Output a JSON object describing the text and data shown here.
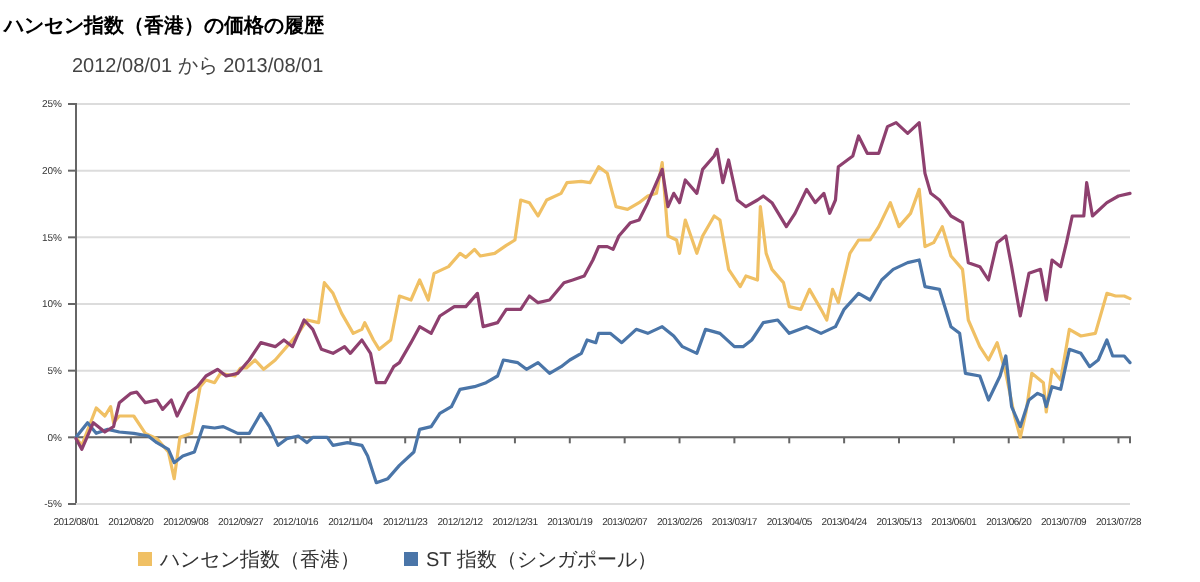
{
  "chart_data": {
    "type": "line",
    "title": "ハンセン指数（香港）の価格の履歴",
    "subtitle": "2012/08/01 から 2013/08/01",
    "xlim": [
      "2012-08-01",
      "2013-08-01"
    ],
    "xticks": [
      {
        "value": "2012-08-01",
        "label": "2012/08/01"
      },
      {
        "value": "2012-08-20",
        "label": "2012/08/20"
      },
      {
        "value": "2012-09-08",
        "label": "2012/09/08"
      },
      {
        "value": "2012-09-27",
        "label": "2012/09/27"
      },
      {
        "value": "2012-10-16",
        "label": "2012/10/16"
      },
      {
        "value": "2012-11-04",
        "label": "2012/11/04"
      },
      {
        "value": "2012-11-23",
        "label": "2012/11/23"
      },
      {
        "value": "2012-12-12",
        "label": "2012/12/12"
      },
      {
        "value": "2012-12-31",
        "label": "2012/12/31"
      },
      {
        "value": "2013-01-19",
        "label": "2013/01/19"
      },
      {
        "value": "2013-02-07",
        "label": "2013/02/07"
      },
      {
        "value": "2013-02-26",
        "label": "2013/02/26"
      },
      {
        "value": "2013-03-17",
        "label": "2013/03/17"
      },
      {
        "value": "2013-04-05",
        "label": "2013/04/05"
      },
      {
        "value": "2013-04-24",
        "label": "2013/04/24"
      },
      {
        "value": "2013-05-13",
        "label": "2013/05/13"
      },
      {
        "value": "2013-06-01",
        "label": "2013/06/01"
      },
      {
        "value": "2013-06-20",
        "label": "2013/06/20"
      },
      {
        "value": "2013-07-09",
        "label": "2013/07/09"
      },
      {
        "value": "2013-07-28",
        "label": "2013/07/28"
      }
    ],
    "ylim": [
      -5,
      25
    ],
    "yticks": [
      {
        "value": -5,
        "label": "-5%"
      },
      {
        "value": 0,
        "label": "0%"
      },
      {
        "value": 5,
        "label": "5%"
      },
      {
        "value": 10,
        "label": "10%"
      },
      {
        "value": 15,
        "label": "15%"
      },
      {
        "value": 20,
        "label": "20%"
      },
      {
        "value": 25,
        "label": "25%"
      }
    ],
    "grid": "y",
    "legend": "bottom",
    "marker": "none",
    "line_style": "solid",
    "series": [
      {
        "name": "ハンセン指数（香港）",
        "color": "#f0c064",
        "x": [
          "2012-08-01",
          "2012-08-03",
          "2012-08-08",
          "2012-08-11",
          "2012-08-13",
          "2012-08-14",
          "2012-08-16",
          "2012-08-21",
          "2012-08-25",
          "2012-08-29",
          "2012-09-02",
          "2012-09-04",
          "2012-09-06",
          "2012-09-10",
          "2012-09-13",
          "2012-09-15",
          "2012-09-18",
          "2012-09-20",
          "2012-09-25",
          "2012-09-27",
          "2012-09-29",
          "2012-10-02",
          "2012-10-05",
          "2012-10-09",
          "2012-10-13",
          "2012-10-17",
          "2012-10-20",
          "2012-10-24",
          "2012-10-26",
          "2012-10-29",
          "2012-11-01",
          "2012-11-05",
          "2012-11-08",
          "2012-11-09",
          "2012-11-12",
          "2012-11-14",
          "2012-11-18",
          "2012-11-21",
          "2012-11-25",
          "2012-11-28",
          "2012-12-01",
          "2012-12-03",
          "2012-12-08",
          "2012-12-12",
          "2012-12-14",
          "2012-12-17",
          "2012-12-19",
          "2012-12-24",
          "2012-12-28",
          "2012-12-31",
          "2013-01-02",
          "2013-01-05",
          "2013-01-08",
          "2013-01-11",
          "2013-01-16",
          "2013-01-18",
          "2013-01-23",
          "2013-01-26",
          "2013-01-29",
          "2013-02-01",
          "2013-02-04",
          "2013-02-08",
          "2013-02-12",
          "2013-02-15",
          "2013-02-18",
          "2013-02-20",
          "2013-02-22",
          "2013-02-25",
          "2013-02-26",
          "2013-02-28",
          "2013-03-04",
          "2013-03-06",
          "2013-03-10",
          "2013-03-12",
          "2013-03-15",
          "2013-03-19",
          "2013-03-21",
          "2013-03-25",
          "2013-03-26",
          "2013-03-28",
          "2013-03-30",
          "2013-04-03",
          "2013-04-05",
          "2013-04-09",
          "2013-04-12",
          "2013-04-16",
          "2013-04-18",
          "2013-04-20",
          "2013-04-22",
          "2013-04-26",
          "2013-04-29",
          "2013-05-03",
          "2013-05-06",
          "2013-05-10",
          "2013-05-13",
          "2013-05-17",
          "2013-05-20",
          "2013-05-22",
          "2013-05-25",
          "2013-05-28",
          "2013-05-31",
          "2013-06-04",
          "2013-06-06",
          "2013-06-10",
          "2013-06-13",
          "2013-06-16",
          "2013-06-19",
          "2013-06-22",
          "2013-06-24",
          "2013-06-26",
          "2013-06-28",
          "2013-07-02",
          "2013-07-03",
          "2013-07-05",
          "2013-07-08",
          "2013-07-11",
          "2013-07-15",
          "2013-07-20",
          "2013-07-24",
          "2013-07-27",
          "2013-07-30",
          "2013-08-01"
        ],
        "values": [
          0,
          -0.6,
          2.2,
          1.6,
          2.3,
          1.1,
          1.6,
          1.6,
          0.3,
          -0.1,
          -1.1,
          -3.1,
          0,
          0.3,
          3.8,
          4.3,
          4.1,
          4.8,
          4.6,
          5.2,
          5.2,
          5.8,
          5.1,
          5.8,
          6.8,
          7.8,
          8.8,
          8.6,
          11.6,
          10.8,
          9.3,
          7.8,
          8.1,
          8.6,
          7.3,
          6.6,
          7.3,
          10.6,
          10.3,
          11.8,
          10.3,
          12.3,
          12.8,
          13.8,
          13.5,
          14.1,
          13.6,
          13.8,
          14.4,
          14.8,
          17.8,
          17.6,
          16.6,
          17.8,
          18.3,
          19.1,
          19.2,
          19.1,
          20.3,
          19.8,
          17.3,
          17.1,
          17.6,
          18.1,
          18.3,
          20.6,
          15.1,
          14.8,
          13.8,
          16.3,
          13.8,
          15.1,
          16.6,
          16.3,
          12.6,
          11.3,
          12.1,
          11.8,
          17.3,
          13.8,
          12.6,
          11.6,
          9.8,
          9.6,
          11.1,
          9.6,
          8.8,
          11.1,
          10.1,
          13.8,
          14.8,
          14.8,
          15.8,
          17.6,
          15.8,
          16.8,
          18.6,
          14.3,
          14.6,
          15.8,
          13.6,
          12.6,
          8.8,
          6.8,
          5.8,
          7.1,
          4.8,
          1.6,
          0,
          1.9,
          4.8,
          4.1,
          1.9,
          5.1,
          4.3,
          8.1,
          7.6,
          7.8,
          10.8,
          10.6,
          10.6,
          10.4
        ]
      },
      {
        "name": "ST 指数（シンガポール）",
        "color": "#4a75a8",
        "x": [
          "2012-08-01",
          "2012-08-05",
          "2012-08-08",
          "2012-08-12",
          "2012-08-16",
          "2012-08-21",
          "2012-08-26",
          "2012-08-29",
          "2012-09-02",
          "2012-09-04",
          "2012-09-07",
          "2012-09-11",
          "2012-09-14",
          "2012-09-18",
          "2012-09-21",
          "2012-09-26",
          "2012-09-30",
          "2012-10-04",
          "2012-10-07",
          "2012-10-10",
          "2012-10-13",
          "2012-10-17",
          "2012-10-20",
          "2012-10-22",
          "2012-10-27",
          "2012-10-29",
          "2012-11-03",
          "2012-11-08",
          "2012-11-10",
          "2012-11-13",
          "2012-11-17",
          "2012-11-21",
          "2012-11-26",
          "2012-11-28",
          "2012-12-02",
          "2012-12-05",
          "2012-12-09",
          "2012-12-12",
          "2012-12-17",
          "2012-12-21",
          "2012-12-25",
          "2012-12-27",
          "2013-01-01",
          "2013-01-04",
          "2013-01-08",
          "2013-01-12",
          "2013-01-16",
          "2013-01-19",
          "2013-01-23",
          "2013-01-25",
          "2013-01-28",
          "2013-01-29",
          "2013-02-02",
          "2013-02-06",
          "2013-02-11",
          "2013-02-15",
          "2013-02-20",
          "2013-02-24",
          "2013-02-27",
          "2013-03-04",
          "2013-03-07",
          "2013-03-12",
          "2013-03-17",
          "2013-03-20",
          "2013-03-23",
          "2013-03-27",
          "2013-04-01",
          "2013-04-05",
          "2013-04-11",
          "2013-04-16",
          "2013-04-21",
          "2013-04-24",
          "2013-04-29",
          "2013-05-03",
          "2013-05-07",
          "2013-05-11",
          "2013-05-16",
          "2013-05-20",
          "2013-05-22",
          "2013-05-27",
          "2013-05-31",
          "2013-06-03",
          "2013-06-05",
          "2013-06-10",
          "2013-06-13",
          "2013-06-17",
          "2013-06-19",
          "2013-06-21",
          "2013-06-24",
          "2013-06-27",
          "2013-06-30",
          "2013-07-02",
          "2013-07-03",
          "2013-07-05",
          "2013-07-08",
          "2013-07-11",
          "2013-07-15",
          "2013-07-18",
          "2013-07-21",
          "2013-07-24",
          "2013-07-26",
          "2013-07-30",
          "2013-08-01"
        ],
        "values": [
          0,
          1.1,
          0.3,
          0.6,
          0.4,
          0.3,
          0.1,
          -0.4,
          -0.9,
          -1.9,
          -1.4,
          -1.1,
          0.8,
          0.7,
          0.8,
          0.3,
          0.3,
          1.8,
          0.8,
          -0.6,
          -0.1,
          0.1,
          -0.4,
          0,
          0,
          -0.6,
          -0.4,
          -0.6,
          -1.4,
          -3.4,
          -3.1,
          -2.1,
          -1.1,
          0.6,
          0.8,
          1.8,
          2.3,
          3.6,
          3.8,
          4.1,
          4.6,
          5.8,
          5.6,
          5.1,
          5.6,
          4.8,
          5.3,
          5.8,
          6.3,
          7.3,
          7.1,
          7.8,
          7.8,
          7.1,
          8.1,
          7.8,
          8.3,
          7.6,
          6.8,
          6.3,
          8.1,
          7.8,
          6.8,
          6.8,
          7.3,
          8.6,
          8.8,
          7.8,
          8.3,
          7.8,
          8.3,
          9.6,
          10.8,
          10.3,
          11.8,
          12.6,
          13.1,
          13.3,
          11.3,
          11.1,
          8.3,
          7.8,
          4.8,
          4.6,
          2.8,
          4.6,
          6.1,
          2.3,
          0.8,
          2.8,
          3.3,
          3.1,
          2.3,
          3.8,
          3.6,
          6.6,
          6.3,
          5.3,
          5.8,
          7.3,
          6.1,
          6.1,
          5.6
        ]
      },
      {
        "color": "#8e406f",
        "x": [
          "2012-08-01",
          "2012-08-03",
          "2012-08-07",
          "2012-08-11",
          "2012-08-14",
          "2012-08-16",
          "2012-08-20",
          "2012-08-22",
          "2012-08-25",
          "2012-08-29",
          "2012-08-31",
          "2012-09-03",
          "2012-09-05",
          "2012-09-09",
          "2012-09-12",
          "2012-09-15",
          "2012-09-19",
          "2012-09-22",
          "2012-09-26",
          "2012-09-30",
          "2012-10-04",
          "2012-10-09",
          "2012-10-12",
          "2012-10-15",
          "2012-10-19",
          "2012-10-22",
          "2012-10-25",
          "2012-10-29",
          "2012-11-02",
          "2012-11-04",
          "2012-11-08",
          "2012-11-11",
          "2012-11-13",
          "2012-11-16",
          "2012-11-19",
          "2012-11-21",
          "2012-11-25",
          "2012-11-28",
          "2012-12-02",
          "2012-12-05",
          "2012-12-10",
          "2012-12-14",
          "2012-12-18",
          "2012-12-20",
          "2012-12-25",
          "2012-12-28",
          "2013-01-02",
          "2013-01-05",
          "2013-01-08",
          "2013-01-12",
          "2013-01-17",
          "2013-01-20",
          "2013-01-24",
          "2013-01-27",
          "2013-01-29",
          "2013-02-01",
          "2013-02-03",
          "2013-02-05",
          "2013-02-09",
          "2013-02-12",
          "2013-02-15",
          "2013-02-18",
          "2013-02-20",
          "2013-02-22",
          "2013-02-24",
          "2013-02-26",
          "2013-02-28",
          "2013-03-04",
          "2013-03-06",
          "2013-03-10",
          "2013-03-11",
          "2013-03-13",
          "2013-03-15",
          "2013-03-18",
          "2013-03-21",
          "2013-03-25",
          "2013-03-27",
          "2013-03-30",
          "2013-04-04",
          "2013-04-07",
          "2013-04-11",
          "2013-04-14",
          "2013-04-17",
          "2013-04-19",
          "2013-04-21",
          "2013-04-22",
          "2013-04-27",
          "2013-04-29",
          "2013-05-02",
          "2013-05-06",
          "2013-05-09",
          "2013-05-12",
          "2013-05-16",
          "2013-05-20",
          "2013-05-22",
          "2013-05-24",
          "2013-05-27",
          "2013-05-31",
          "2013-06-04",
          "2013-06-06",
          "2013-06-10",
          "2013-06-13",
          "2013-06-16",
          "2013-06-19",
          "2013-06-21",
          "2013-06-24",
          "2013-06-27",
          "2013-07-01",
          "2013-07-03",
          "2013-07-05",
          "2013-07-08",
          "2013-07-10",
          "2013-07-12",
          "2013-07-16",
          "2013-07-17",
          "2013-07-19",
          "2013-07-24",
          "2013-07-28",
          "2013-08-01"
        ],
        "values": [
          -0.1,
          -0.9,
          1.1,
          0.4,
          0.8,
          2.6,
          3.3,
          3.4,
          2.6,
          2.8,
          2.1,
          2.8,
          1.6,
          3.3,
          3.8,
          4.6,
          5.1,
          4.6,
          4.8,
          5.8,
          7.1,
          6.8,
          7.3,
          6.8,
          8.8,
          8.1,
          6.6,
          6.3,
          6.8,
          6.3,
          7.3,
          6.3,
          4.1,
          4.1,
          5.3,
          5.6,
          7.1,
          8.3,
          7.8,
          9.1,
          9.8,
          9.8,
          10.8,
          8.3,
          8.6,
          9.6,
          9.6,
          10.6,
          10.1,
          10.3,
          11.6,
          11.8,
          12.1,
          13.3,
          14.3,
          14.3,
          14.1,
          15.1,
          16.1,
          16.3,
          17.6,
          19.1,
          20.1,
          17.3,
          18.3,
          17.6,
          19.3,
          18.3,
          20.1,
          21.1,
          21.6,
          19.1,
          20.8,
          17.8,
          17.3,
          17.8,
          18.1,
          17.6,
          15.8,
          16.8,
          18.6,
          17.6,
          18.3,
          16.8,
          17.8,
          20.3,
          21.1,
          22.6,
          21.3,
          21.3,
          23.3,
          23.6,
          22.8,
          23.6,
          19.8,
          18.3,
          17.8,
          16.6,
          16.1,
          13.1,
          12.8,
          11.8,
          14.6,
          15.1,
          12.8,
          9.1,
          12.3,
          12.6,
          10.3,
          13.3,
          12.8,
          14.6,
          16.6,
          16.6,
          19.1,
          16.6,
          17.6,
          18.1,
          18.3
        ]
      }
    ]
  }
}
